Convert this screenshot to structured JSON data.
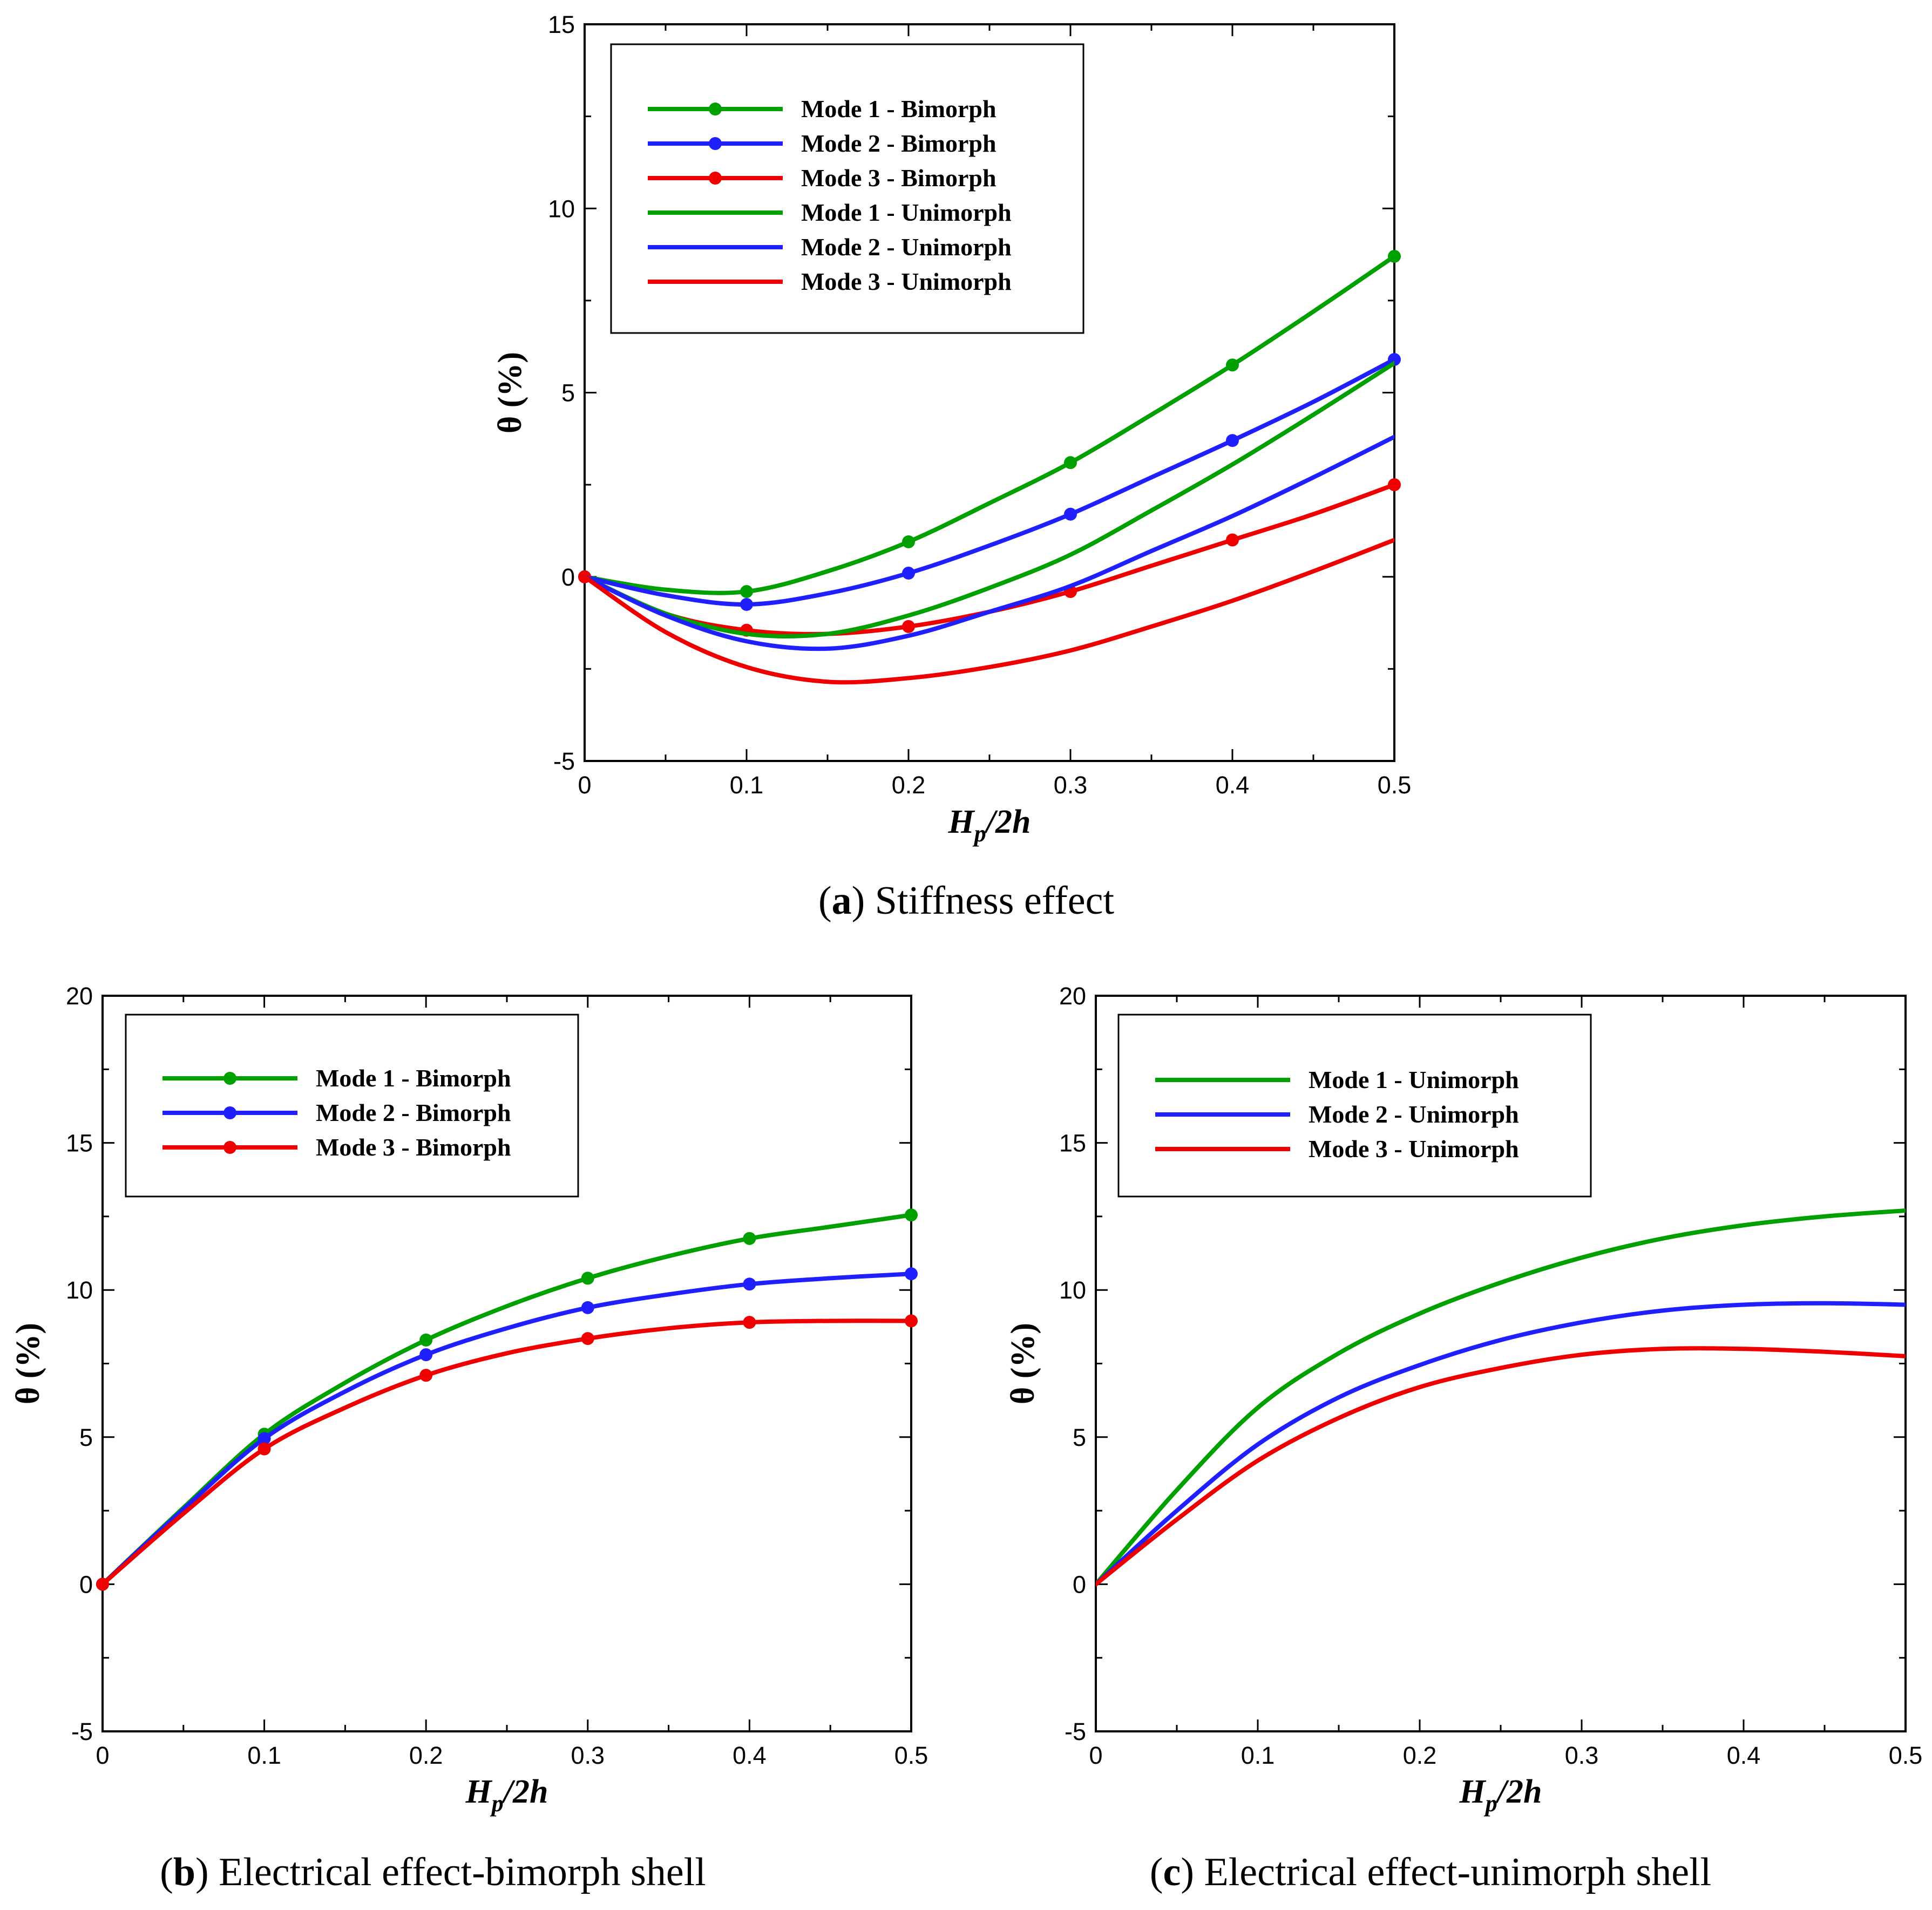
{
  "chart_data": [
    {
      "type": "line",
      "caption_letter": "a",
      "caption_text": "Stiffness effect",
      "xlabel_main": "H",
      "xlabel_sub": "p",
      "xlabel_rest": "/2h",
      "ylabel": "θ (%)",
      "xlim": [
        0,
        0.5
      ],
      "ylim": [
        -5,
        15
      ],
      "xticks": [
        0,
        0.1,
        0.2,
        0.3,
        0.4,
        0.5
      ],
      "xtick_labels": [
        "0",
        "0.1",
        "0.2",
        "0.3",
        "0.4",
        "0.5"
      ],
      "yticks": [
        -5,
        0,
        5,
        10,
        15
      ],
      "ytick_labels": [
        "-5",
        "0",
        "5",
        "10",
        "15"
      ],
      "legend_position": "top-left",
      "series": [
        {
          "name": "Mode 1 - Bimorph",
          "color": "#00a000",
          "markers": true,
          "x": [
            0,
            0.05,
            0.1,
            0.15,
            0.2,
            0.25,
            0.3,
            0.35,
            0.4,
            0.45,
            0.5
          ],
          "y": [
            0,
            -0.35,
            -0.4,
            0.15,
            0.95,
            2.0,
            3.1,
            4.4,
            5.75,
            7.2,
            8.7
          ]
        },
        {
          "name": "Mode 2 - Bimorph",
          "color": "#2020ff",
          "markers": true,
          "x": [
            0,
            0.05,
            0.1,
            0.15,
            0.2,
            0.25,
            0.3,
            0.35,
            0.4,
            0.45,
            0.5
          ],
          "y": [
            0,
            -0.5,
            -0.75,
            -0.45,
            0.1,
            0.85,
            1.7,
            2.7,
            3.7,
            4.75,
            5.9
          ]
        },
        {
          "name": "Mode 3 - Bimorph",
          "color": "#ee0000",
          "markers": true,
          "x": [
            0,
            0.05,
            0.1,
            0.15,
            0.2,
            0.25,
            0.3,
            0.35,
            0.4,
            0.45,
            0.5
          ],
          "y": [
            0,
            -1.0,
            -1.45,
            -1.55,
            -1.35,
            -0.95,
            -0.4,
            0.3,
            1.0,
            1.7,
            2.5
          ]
        },
        {
          "name": "Mode 1 - Unimorph",
          "color": "#00a000",
          "markers": false,
          "x": [
            0,
            0.05,
            0.1,
            0.15,
            0.2,
            0.25,
            0.3,
            0.35,
            0.4,
            0.45,
            0.5
          ],
          "y": [
            0,
            -1.0,
            -1.55,
            -1.55,
            -1.05,
            -0.3,
            0.6,
            1.8,
            3.05,
            4.4,
            5.8
          ]
        },
        {
          "name": "Mode 2 - Unimorph",
          "color": "#2020ff",
          "markers": false,
          "x": [
            0,
            0.05,
            0.1,
            0.15,
            0.2,
            0.25,
            0.3,
            0.35,
            0.4,
            0.45,
            0.5
          ],
          "y": [
            0,
            -1.05,
            -1.75,
            -1.95,
            -1.6,
            -0.95,
            -0.25,
            0.7,
            1.65,
            2.7,
            3.8
          ]
        },
        {
          "name": "Mode 3 - Unimorph",
          "color": "#ee0000",
          "markers": false,
          "x": [
            0,
            0.05,
            0.1,
            0.15,
            0.2,
            0.25,
            0.3,
            0.35,
            0.4,
            0.45,
            0.5
          ],
          "y": [
            0,
            -1.5,
            -2.45,
            -2.85,
            -2.75,
            -2.45,
            -2.0,
            -1.35,
            -0.65,
            0.15,
            1.0
          ]
        }
      ]
    },
    {
      "type": "line",
      "caption_letter": "b",
      "caption_text": "Electrical effect-bimorph shell",
      "xlabel_main": "H",
      "xlabel_sub": "p",
      "xlabel_rest": "/2h",
      "ylabel": "θ (%)",
      "xlim": [
        0,
        0.5
      ],
      "ylim": [
        -5,
        20
      ],
      "xticks": [
        0,
        0.1,
        0.2,
        0.3,
        0.4,
        0.5
      ],
      "xtick_labels": [
        "0",
        "0.1",
        "0.2",
        "0.3",
        "0.4",
        "0.5"
      ],
      "yticks": [
        -5,
        0,
        5,
        10,
        15,
        20
      ],
      "ytick_labels": [
        "-5",
        "0",
        "5",
        "10",
        "15",
        "20"
      ],
      "legend_position": "top-left",
      "series": [
        {
          "name": "Mode 1 - Bimorph",
          "color": "#00a000",
          "markers": true,
          "x": [
            0,
            0.05,
            0.1,
            0.15,
            0.2,
            0.25,
            0.3,
            0.35,
            0.4,
            0.45,
            0.5
          ],
          "y": [
            0,
            2.6,
            5.1,
            6.85,
            8.3,
            9.45,
            10.4,
            11.15,
            11.75,
            12.15,
            12.55
          ]
        },
        {
          "name": "Mode 2 - Bimorph",
          "color": "#2020ff",
          "markers": true,
          "x": [
            0,
            0.05,
            0.1,
            0.15,
            0.2,
            0.25,
            0.3,
            0.35,
            0.4,
            0.45,
            0.5
          ],
          "y": [
            0,
            2.55,
            4.95,
            6.55,
            7.8,
            8.7,
            9.4,
            9.85,
            10.2,
            10.4,
            10.55
          ]
        },
        {
          "name": "Mode 3 - Bimorph",
          "color": "#ee0000",
          "markers": true,
          "x": [
            0,
            0.05,
            0.1,
            0.15,
            0.2,
            0.25,
            0.3,
            0.35,
            0.4,
            0.45,
            0.5
          ],
          "y": [
            0,
            2.4,
            4.6,
            6.0,
            7.1,
            7.85,
            8.35,
            8.7,
            8.9,
            8.95,
            8.95
          ]
        }
      ]
    },
    {
      "type": "line",
      "caption_letter": "c",
      "caption_text": "Electrical effect-unimorph shell",
      "xlabel_main": "H",
      "xlabel_sub": "p",
      "xlabel_rest": "/2h",
      "ylabel": "θ (%)",
      "xlim": [
        0,
        0.5
      ],
      "ylim": [
        -5,
        20
      ],
      "xticks": [
        0,
        0.1,
        0.2,
        0.3,
        0.4,
        0.5
      ],
      "xtick_labels": [
        "0",
        "0.1",
        "0.2",
        "0.3",
        "0.4",
        "0.5"
      ],
      "yticks": [
        -5,
        0,
        5,
        10,
        15,
        20
      ],
      "ytick_labels": [
        "-5",
        "0",
        "5",
        "10",
        "15",
        "20"
      ],
      "legend_position": "top-left",
      "series": [
        {
          "name": "Mode 1 - Unimorph",
          "color": "#00a000",
          "markers": false,
          "x": [
            0,
            0.05,
            0.1,
            0.15,
            0.2,
            0.25,
            0.3,
            0.35,
            0.4,
            0.45,
            0.5
          ],
          "y": [
            0,
            3.2,
            6.0,
            7.85,
            9.2,
            10.25,
            11.1,
            11.75,
            12.2,
            12.5,
            12.7
          ]
        },
        {
          "name": "Mode 2 - Unimorph",
          "color": "#2020ff",
          "markers": false,
          "x": [
            0,
            0.05,
            0.1,
            0.15,
            0.2,
            0.25,
            0.3,
            0.35,
            0.4,
            0.45,
            0.5
          ],
          "y": [
            0,
            2.5,
            4.75,
            6.35,
            7.45,
            8.3,
            8.9,
            9.3,
            9.5,
            9.55,
            9.5
          ]
        },
        {
          "name": "Mode 3 - Unimorph",
          "color": "#ee0000",
          "markers": false,
          "x": [
            0,
            0.05,
            0.1,
            0.15,
            0.2,
            0.25,
            0.3,
            0.35,
            0.4,
            0.45,
            0.5
          ],
          "y": [
            0,
            2.2,
            4.2,
            5.65,
            6.7,
            7.35,
            7.8,
            8.0,
            8.0,
            7.9,
            7.75
          ]
        }
      ]
    }
  ]
}
